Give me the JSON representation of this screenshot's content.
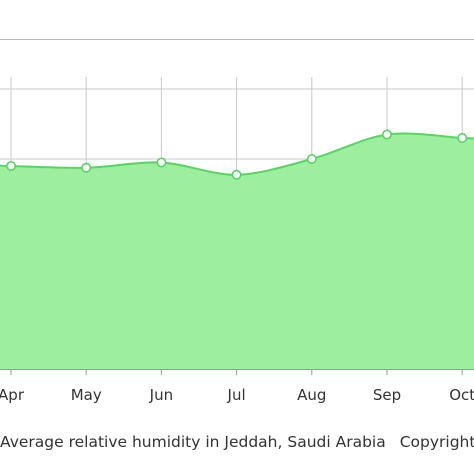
{
  "chart_data": {
    "type": "area",
    "categories": [
      "Apr",
      "May",
      "Jun",
      "Jul",
      "Aug",
      "Sep",
      "Oct"
    ],
    "values": [
      58,
      57.5,
      59,
      55.5,
      60,
      67,
      66
    ],
    "ylim": [
      0,
      100
    ],
    "grid": true,
    "colors": {
      "fill": "#9eeea0",
      "line": "#58d463",
      "grid": "#c8c8c8",
      "point_fill": "#ffffff"
    }
  },
  "caption": {
    "text": "Average relative humidity in Jeddah, Saudi Arabia",
    "copyright": "Copyright"
  }
}
